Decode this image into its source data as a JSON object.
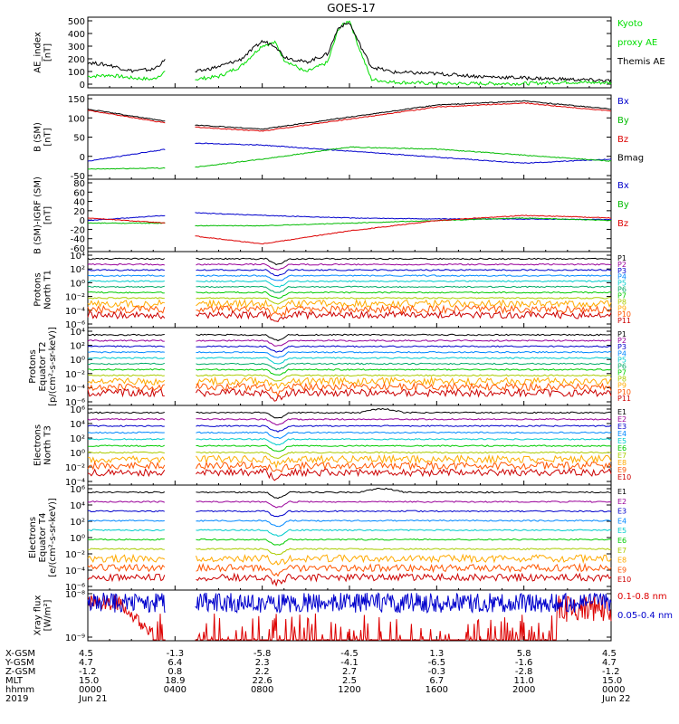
{
  "title": "GOES-17",
  "panels": [
    {
      "id": "ae",
      "ylabel": [
        "AE_index",
        "[nT]"
      ],
      "ticks": [
        "500",
        "400",
        "300",
        "200",
        "100",
        "0"
      ],
      "legend": [
        {
          "text": "Kyoto",
          "color": "#00dd00"
        },
        {
          "text": "proxy AE",
          "color": "#00dd00"
        },
        {
          "text": "Themis AE",
          "color": "#000000"
        }
      ]
    },
    {
      "id": "bsm",
      "ylabel": [
        "B (SM)",
        "[nT]"
      ],
      "ticks": [
        "150",
        "100",
        "50",
        "0",
        "-50"
      ],
      "legend": [
        {
          "text": "Bx",
          "color": "#0000cc"
        },
        {
          "text": "By",
          "color": "#00bb00"
        },
        {
          "text": "Bz",
          "color": "#dd0000"
        },
        {
          "text": "Bmag",
          "color": "#000000"
        }
      ]
    },
    {
      "id": "bigrf",
      "ylabel": [
        "B (SM)-IGRF (SM)",
        "[nT]"
      ],
      "ticks": [
        "80",
        "60",
        "40",
        "20",
        "0",
        "-20",
        "-40",
        "-60"
      ],
      "legend": [
        {
          "text": "Bx",
          "color": "#0000cc"
        },
        {
          "text": "By",
          "color": "#00bb00"
        },
        {
          "text": "Bz",
          "color": "#dd0000"
        }
      ]
    },
    {
      "id": "pn",
      "ylabel": [
        "Protons",
        "North T1"
      ],
      "ticks": [
        "10⁴",
        "10²",
        "10⁰",
        "10⁻²",
        "10⁻⁴",
        "10⁻⁶"
      ],
      "legend": [
        {
          "text": "P1",
          "color": "#000000"
        },
        {
          "text": "P2",
          "color": "#990099"
        },
        {
          "text": "P3",
          "color": "#0000cc"
        },
        {
          "text": "P4",
          "color": "#0088ff"
        },
        {
          "text": "P5",
          "color": "#00cccc"
        },
        {
          "text": "P6",
          "color": "#00aa66"
        },
        {
          "text": "P7",
          "color": "#00cc00"
        },
        {
          "text": "P8",
          "color": "#aacc00"
        },
        {
          "text": "P9",
          "color": "#ffaa00"
        },
        {
          "text": "P10",
          "color": "#ff5500"
        },
        {
          "text": "P11",
          "color": "#cc0000"
        }
      ]
    },
    {
      "id": "pe",
      "ylabel": [
        "Protons",
        "Equator T2",
        "[p/(cm²-s-sr-keV)]"
      ],
      "ticks": [
        "10⁴",
        "10²",
        "10⁰",
        "10⁻²",
        "10⁻⁴",
        "10⁻⁶"
      ],
      "legend": [
        {
          "text": "P1",
          "color": "#000000"
        },
        {
          "text": "P2",
          "color": "#990099"
        },
        {
          "text": "P3",
          "color": "#0000cc"
        },
        {
          "text": "P4",
          "color": "#0088ff"
        },
        {
          "text": "P5",
          "color": "#00cccc"
        },
        {
          "text": "P6",
          "color": "#00aa66"
        },
        {
          "text": "P7",
          "color": "#00cc00"
        },
        {
          "text": "P8",
          "color": "#aacc00"
        },
        {
          "text": "P9",
          "color": "#ffaa00"
        },
        {
          "text": "P10",
          "color": "#ff5500"
        },
        {
          "text": "P11",
          "color": "#cc0000"
        }
      ]
    },
    {
      "id": "en",
      "ylabel": [
        "Electrons",
        "North T3"
      ],
      "ticks": [
        "10⁶",
        "10⁴",
        "10²",
        "10⁰",
        "10⁻²",
        "10⁻⁴"
      ],
      "legend": [
        {
          "text": "E1",
          "color": "#000000"
        },
        {
          "text": "E2",
          "color": "#990099"
        },
        {
          "text": "E3",
          "color": "#0000cc"
        },
        {
          "text": "E4",
          "color": "#0088ff"
        },
        {
          "text": "E5",
          "color": "#00cccc"
        },
        {
          "text": "E6",
          "color": "#00cc00"
        },
        {
          "text": "E7",
          "color": "#aacc00"
        },
        {
          "text": "E8",
          "color": "#ffaa00"
        },
        {
          "text": "E9",
          "color": "#ff5500"
        },
        {
          "text": "E10",
          "color": "#cc0000"
        }
      ]
    },
    {
      "id": "ee",
      "ylabel": [
        "Electrons",
        "Equator T4",
        "[e/(cm²-s-sr-keV)]"
      ],
      "ticks": [
        "10⁶",
        "10⁴",
        "10²",
        "10⁰",
        "10⁻²",
        "10⁻⁴",
        "10⁻⁶"
      ],
      "legend": [
        {
          "text": "E1",
          "color": "#000000"
        },
        {
          "text": "E2",
          "color": "#990099"
        },
        {
          "text": "E3",
          "color": "#0000cc"
        },
        {
          "text": "E4",
          "color": "#0088ff"
        },
        {
          "text": "E5",
          "color": "#00cccc"
        },
        {
          "text": "E6",
          "color": "#00cc00"
        },
        {
          "text": "E7",
          "color": "#aacc00"
        },
        {
          "text": "E8",
          "color": "#ffaa00"
        },
        {
          "text": "E9",
          "color": "#ff5500"
        },
        {
          "text": "E10",
          "color": "#cc0000"
        }
      ]
    },
    {
      "id": "xray",
      "ylabel": [
        "Xray flux",
        "[W/m²]"
      ],
      "ticks": [
        "10⁻⁸",
        "10⁻⁹"
      ],
      "legend": [
        {
          "text": "0.1-0.8 nm",
          "color": "#dd0000"
        },
        {
          "text": "0.05-0.4 nm",
          "color": "#0000cc"
        }
      ]
    }
  ],
  "footer": {
    "row_labels": [
      "X-GSM",
      "Y-GSM",
      "Z-GSM",
      "MLT",
      "hhmm",
      "2019"
    ],
    "columns": [
      [
        "4.5",
        "4.7",
        "-1.2",
        "15.0",
        "0000",
        "Jun 21"
      ],
      [
        "-1.3",
        "6.4",
        "0.8",
        "18.9",
        "0400",
        ""
      ],
      [
        "-5.8",
        "2.3",
        "2.2",
        "22.6",
        "0800",
        ""
      ],
      [
        "-4.5",
        "-4.1",
        "2.7",
        "2.5",
        "1200",
        ""
      ],
      [
        "1.3",
        "-6.5",
        "-0.3",
        "6.7",
        "1600",
        ""
      ],
      [
        "5.8",
        "-1.6",
        "-2.8",
        "11.0",
        "2000",
        ""
      ],
      [
        "4.5",
        "4.7",
        "-1.2",
        "15.0",
        "0000",
        "Jun 22"
      ]
    ]
  },
  "chart_data": {
    "type": "line",
    "title": "GOES-17",
    "x": [
      "0000",
      "0400",
      "0800",
      "1200",
      "1600",
      "2000",
      "0000"
    ],
    "xlabel": "hhmm",
    "data_gap_hours": [
      3.6,
      4.9
    ],
    "panels": [
      {
        "name": "AE_index",
        "ylabel": "AE_index [nT]",
        "ylim": [
          0,
          500
        ],
        "series": [
          {
            "name": "Kyoto proxy AE",
            "color": "#00dd00",
            "x": [
              0,
              1,
              2,
              3,
              3.6,
              4.9,
              6,
              7,
              8,
              8.6,
              9,
              10,
              11,
              11.5,
              12,
              12.4,
              13,
              14,
              16,
              18,
              20,
              22,
              24
            ],
            "y": [
              80,
              90,
              70,
              60,
              120,
              60,
              80,
              150,
              300,
              320,
              200,
              110,
              180,
              420,
              480,
              300,
              60,
              40,
              30,
              30,
              30,
              40,
              35
            ]
          },
          {
            "name": "Themis AE",
            "color": "#000000",
            "x": [
              0,
              1,
              2,
              3,
              3.6,
              4.9,
              6,
              7,
              8,
              8.6,
              9,
              10,
              11,
              11.5,
              12,
              12.4,
              13,
              14,
              16,
              18,
              20,
              22,
              24
            ],
            "y": [
              180,
              160,
              120,
              130,
              200,
              110,
              150,
              200,
              330,
              300,
              220,
              180,
              240,
              430,
              460,
              330,
              150,
              110,
              100,
              80,
              70,
              60,
              50
            ]
          }
        ]
      },
      {
        "name": "B (SM)",
        "ylabel": "B (SM) [nT]",
        "ylim": [
          -60,
          150
        ],
        "series": [
          {
            "name": "Bx",
            "color": "#0000cc",
            "x": [
              0,
              3.6,
              4.9,
              8,
              12,
              16,
              20,
              24
            ],
            "y": [
              -15,
              15,
              30,
              25,
              10,
              -5,
              -20,
              -10
            ]
          },
          {
            "name": "By",
            "color": "#00bb00",
            "x": [
              0,
              3.6,
              4.9,
              8,
              12,
              16,
              20,
              24
            ],
            "y": [
              -35,
              -32,
              -30,
              -10,
              20,
              15,
              0,
              -15
            ]
          },
          {
            "name": "Bz",
            "color": "#dd0000",
            "x": [
              0,
              3.6,
              4.9,
              8,
              12,
              16,
              20,
              24
            ],
            "y": [
              112,
              80,
              70,
              60,
              90,
              120,
              130,
              110
            ]
          },
          {
            "name": "Bmag",
            "color": "#000000",
            "x": [
              0,
              3.6,
              4.9,
              8,
              12,
              16,
              20,
              24
            ],
            "y": [
              115,
              84,
              75,
              65,
              95,
              125,
              135,
              115
            ]
          }
        ]
      },
      {
        "name": "B (SM)-IGRF (SM)",
        "ylabel": "B (SM)-IGRF (SM) [nT]",
        "ylim": [
          -60,
          80
        ],
        "series": [
          {
            "name": "Bx",
            "color": "#0000cc",
            "x": [
              0,
              3.6,
              4.9,
              8,
              12,
              16,
              20,
              24
            ],
            "y": [
              0,
              10,
              15,
              10,
              5,
              3,
              3,
              2
            ]
          },
          {
            "name": "By",
            "color": "#00bb00",
            "x": [
              0,
              3.6,
              4.9,
              8,
              12,
              16,
              20,
              24
            ],
            "y": [
              -5,
              -5,
              -10,
              -10,
              -5,
              0,
              5,
              0
            ]
          },
          {
            "name": "Bz",
            "color": "#dd0000",
            "x": [
              0,
              3.6,
              4.9,
              8,
              12,
              16,
              20,
              24
            ],
            "y": [
              5,
              -5,
              -30,
              -45,
              -20,
              0,
              10,
              5
            ]
          }
        ]
      },
      {
        "name": "Protons North T1",
        "ylabel": "Protons North T1",
        "ylim": [
          -6,
          4
        ],
        "yscale": "log",
        "series_names": [
          "P1",
          "P2",
          "P3",
          "P4",
          "P5",
          "P6",
          "P7",
          "P8",
          "P9",
          "P10",
          "P11"
        ]
      },
      {
        "name": "Protons Equator T2",
        "ylabel": "Protons Equator T2 [p/(cm²-s-sr-keV)]",
        "ylim": [
          -6,
          4
        ],
        "yscale": "log",
        "series_names": [
          "P1",
          "P2",
          "P3",
          "P4",
          "P5",
          "P6",
          "P7",
          "P8",
          "P9",
          "P10",
          "P11"
        ]
      },
      {
        "name": "Electrons North T3",
        "ylabel": "Electrons North T3",
        "ylim": [
          -4,
          6
        ],
        "yscale": "log",
        "series_names": [
          "E1",
          "E2",
          "E3",
          "E4",
          "E5",
          "E6",
          "E7",
          "E8",
          "E9",
          "E10"
        ]
      },
      {
        "name": "Electrons Equator T4",
        "ylabel": "Electrons Equator T4 [e/(cm²-s-sr-keV)]",
        "ylim": [
          -6,
          6
        ],
        "yscale": "log",
        "series_names": [
          "E1",
          "E2",
          "E3",
          "E4",
          "E5",
          "E6",
          "E7",
          "E8",
          "E9",
          "E10"
        ]
      },
      {
        "name": "Xray flux",
        "ylabel": "Xray flux [W/m²]",
        "ylim": [
          -9,
          -8
        ],
        "yscale": "log",
        "series": [
          {
            "name": "0.1-0.8 nm",
            "color": "#dd0000"
          },
          {
            "name": "0.05-0.4 nm",
            "color": "#0000cc"
          }
        ]
      }
    ]
  }
}
